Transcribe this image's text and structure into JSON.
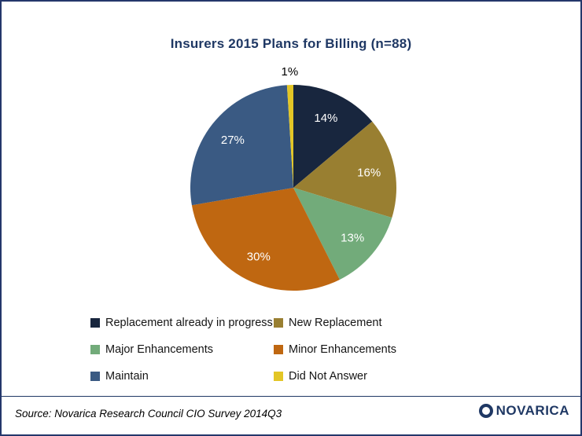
{
  "title": "Insurers 2015 Plans for Billing (n=88)",
  "source": "Source: Novarica Research Council CIO Survey 2014Q3",
  "logo": {
    "text": "NOVARICA"
  },
  "colors": {
    "accent_navy": "#1F3864",
    "frame_border": "#24376b"
  },
  "chart_data": {
    "type": "pie",
    "title": "Insurers 2015 Plans for Billing (n=88)",
    "n": 88,
    "direction": "clockwise",
    "start_angle": "12 o'clock",
    "legend_position": "bottom",
    "legend_columns": 2,
    "slices": [
      {
        "label": "Replacement already in progress",
        "value": 14,
        "pct_label": "14%",
        "color": "#18263E",
        "label_color": "#ffffff",
        "label_outside": false
      },
      {
        "label": "New Replacement",
        "value": 16,
        "pct_label": "16%",
        "color": "#997F31",
        "label_color": "#ffffff",
        "label_outside": false
      },
      {
        "label": "Major Enhancements",
        "value": 13,
        "pct_label": "13%",
        "color": "#72AB7A",
        "label_color": "#ffffff",
        "label_outside": false
      },
      {
        "label": "Minor Enhancements",
        "value": 30,
        "pct_label": "30%",
        "color": "#BF6711",
        "label_color": "#ffffff",
        "label_outside": false
      },
      {
        "label": "Maintain",
        "value": 27,
        "pct_label": "27%",
        "color": "#3A5A83",
        "label_color": "#ffffff",
        "label_outside": false
      },
      {
        "label": "Did Not Answer",
        "value": 1,
        "pct_label": "1%",
        "color": "#E3C626",
        "label_color": "#000000",
        "label_outside": true
      }
    ]
  }
}
